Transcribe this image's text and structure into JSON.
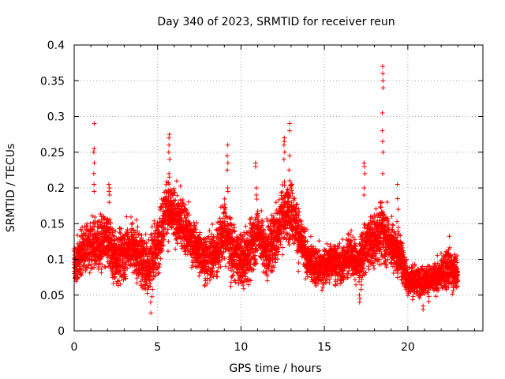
{
  "chart_data": {
    "type": "scatter",
    "title": "Day 340 of 2023, SRMTID for receiver reun",
    "xlabel": "GPS time / hours",
    "ylabel": "SRMTID / TECUs",
    "xlim": [
      0,
      24.5
    ],
    "ylim": [
      0,
      0.4
    ],
    "x_ticks": [
      0,
      5,
      10,
      15,
      20
    ],
    "x_tick_labels": [
      "0",
      "5",
      "10",
      "15",
      "20"
    ],
    "y_ticks": [
      0,
      0.05,
      0.1,
      0.15,
      0.2,
      0.25,
      0.3,
      0.35,
      0.4
    ],
    "y_tick_labels": [
      "0",
      "0.05",
      "0.1",
      "0.15",
      "0.2",
      "0.25",
      "0.3",
      "0.35",
      "0.4"
    ],
    "grid": true,
    "marker": "+",
    "series": [
      {
        "name": "SRMTID",
        "color": "#ff0000",
        "profile_hours": [
          0,
          0.5,
          1.0,
          1.5,
          2.0,
          2.5,
          3.0,
          3.5,
          4.0,
          4.5,
          5.0,
          5.5,
          6.0,
          6.5,
          7.0,
          7.5,
          8.0,
          8.5,
          9.0,
          9.5,
          10.0,
          10.5,
          11.0,
          11.5,
          12.0,
          12.5,
          13.0,
          13.5,
          14.0,
          14.5,
          15.0,
          15.5,
          16.0,
          16.5,
          17.0,
          17.5,
          18.0,
          18.5,
          19.0,
          19.5,
          20.0,
          20.5,
          21.0,
          21.5,
          22.0,
          22.5,
          23.0
        ],
        "profile_mean": [
          0.09,
          0.11,
          0.12,
          0.12,
          0.13,
          0.1,
          0.11,
          0.12,
          0.1,
          0.09,
          0.12,
          0.17,
          0.16,
          0.15,
          0.13,
          0.11,
          0.1,
          0.11,
          0.14,
          0.11,
          0.1,
          0.11,
          0.14,
          0.11,
          0.13,
          0.16,
          0.17,
          0.13,
          0.1,
          0.09,
          0.09,
          0.1,
          0.09,
          0.11,
          0.09,
          0.12,
          0.13,
          0.14,
          0.12,
          0.11,
          0.07,
          0.07,
          0.07,
          0.07,
          0.08,
          0.09,
          0.08
        ],
        "profile_spread": [
          0.025,
          0.03,
          0.035,
          0.035,
          0.035,
          0.035,
          0.035,
          0.035,
          0.035,
          0.04,
          0.04,
          0.04,
          0.035,
          0.035,
          0.03,
          0.03,
          0.03,
          0.035,
          0.04,
          0.035,
          0.035,
          0.04,
          0.035,
          0.035,
          0.04,
          0.04,
          0.04,
          0.035,
          0.025,
          0.025,
          0.025,
          0.025,
          0.025,
          0.03,
          0.025,
          0.035,
          0.035,
          0.04,
          0.035,
          0.03,
          0.02,
          0.02,
          0.02,
          0.02,
          0.02,
          0.03,
          0.02
        ],
        "spikes": [
          {
            "x": 1.2,
            "values": [
              0.29,
              0.255,
              0.25,
              0.235,
              0.22,
              0.205,
              0.195
            ]
          },
          {
            "x": 2.1,
            "values": [
              0.205,
              0.2,
              0.195,
              0.19,
              0.18
            ]
          },
          {
            "x": 5.7,
            "values": [
              0.275,
              0.27,
              0.26,
              0.25,
              0.24,
              0.22,
              0.215
            ]
          },
          {
            "x": 9.2,
            "values": [
              0.26,
              0.245,
              0.235,
              0.225,
              0.2,
              0.195
            ]
          },
          {
            "x": 10.9,
            "values": [
              0.235,
              0.23,
              0.2,
              0.19
            ]
          },
          {
            "x": 12.6,
            "values": [
              0.27,
              0.265,
              0.26,
              0.25,
              0.24
            ]
          },
          {
            "x": 12.9,
            "values": [
              0.29,
              0.28,
              0.245,
              0.225,
              0.21
            ]
          },
          {
            "x": 17.4,
            "values": [
              0.235,
              0.23,
              0.22,
              0.2,
              0.19
            ]
          },
          {
            "x": 18.5,
            "values": [
              0.37,
              0.36,
              0.35,
              0.34,
              0.305,
              0.28,
              0.265,
              0.25,
              0.22
            ]
          },
          {
            "x": 19.4,
            "values": [
              0.205,
              0.185,
              0.17
            ]
          },
          {
            "x": 4.6,
            "values": [
              0.025,
              0.04
            ]
          },
          {
            "x": 17.1,
            "values": [
              0.04,
              0.045,
              0.05
            ]
          },
          {
            "x": 20.9,
            "values": [
              0.03,
              0.035
            ]
          }
        ]
      }
    ]
  }
}
